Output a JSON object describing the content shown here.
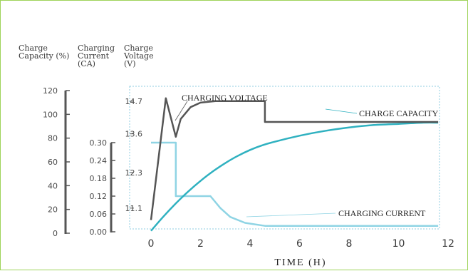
{
  "chart_data": {
    "type": "line",
    "xlabel": "TIME (H)",
    "x_ticks": [
      "0",
      "2",
      "4",
      "6",
      "8",
      "10",
      "12"
    ],
    "xlim": [
      0,
      12
    ],
    "axes": [
      {
        "id": "capacity",
        "title_lines": [
          "Charge",
          "Capacity (%)"
        ],
        "ticks": [
          "0",
          "20",
          "40",
          "60",
          "80",
          "100",
          "120"
        ],
        "range": [
          0,
          120
        ]
      },
      {
        "id": "current",
        "title_lines": [
          "Charging",
          "Current",
          "(CA)"
        ],
        "ticks": [
          "0.00",
          "0.06",
          "0.12",
          "0.18",
          "0.24",
          "0.30"
        ],
        "range": [
          0,
          0.3
        ]
      },
      {
        "id": "voltage",
        "title_lines": [
          "Charge",
          "Voltage",
          "(V)"
        ],
        "ticks": [
          "11.1",
          "12.3",
          "13.6",
          "14.7"
        ],
        "range": [
          10.4,
          15.2
        ]
      }
    ],
    "series": [
      {
        "name": "CHARGE CAPACITY",
        "axis": "capacity",
        "color": "#2fb1c0",
        "points": [
          [
            0,
            2
          ],
          [
            0.5,
            14
          ],
          [
            1,
            25
          ],
          [
            1.5,
            35
          ],
          [
            2,
            44
          ],
          [
            2.5,
            52
          ],
          [
            3,
            59
          ],
          [
            3.5,
            65
          ],
          [
            4,
            70
          ],
          [
            4.5,
            74
          ],
          [
            5,
            77
          ],
          [
            6,
            82
          ],
          [
            7,
            86
          ],
          [
            8,
            89
          ],
          [
            9,
            91
          ],
          [
            10,
            92
          ],
          [
            11,
            93
          ],
          [
            11.6,
            93
          ]
        ]
      },
      {
        "name": "CHARGING CURRENT",
        "axis": "current",
        "color": "#8fd4e4",
        "points": [
          [
            0,
            0.3
          ],
          [
            1,
            0.3
          ],
          [
            1,
            0.12
          ],
          [
            2.4,
            0.12
          ],
          [
            2.8,
            0.08
          ],
          [
            3.2,
            0.05
          ],
          [
            3.8,
            0.03
          ],
          [
            4.6,
            0.02
          ],
          [
            6,
            0.02
          ],
          [
            8,
            0.02
          ],
          [
            11.6,
            0.02
          ]
        ]
      },
      {
        "name": "CHARGING VOLTAGE",
        "axis": "voltage",
        "color": "#555555",
        "points": [
          [
            0,
            10.7
          ],
          [
            0.6,
            14.8
          ],
          [
            1,
            13.5
          ],
          [
            1.2,
            14.1
          ],
          [
            1.6,
            14.5
          ],
          [
            2,
            14.65
          ],
          [
            2.6,
            14.7
          ],
          [
            4.6,
            14.7
          ],
          [
            4.6,
            14.0
          ],
          [
            11.6,
            14.0
          ]
        ]
      }
    ]
  }
}
